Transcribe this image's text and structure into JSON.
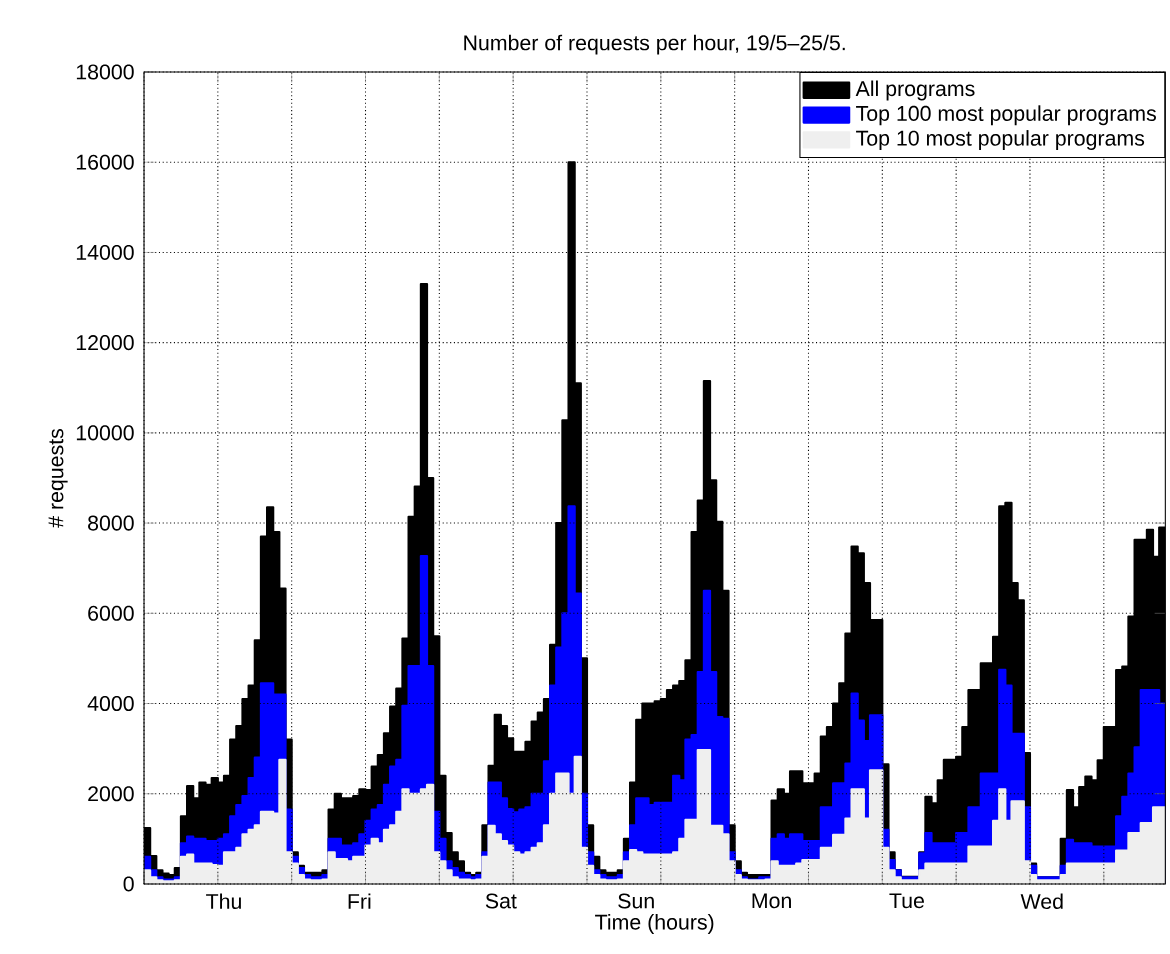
{
  "chart_data": {
    "type": "area",
    "title": "Number of requests per hour, 19/5–25/5.",
    "xlabel": "Time (hours)",
    "ylabel": "# requests",
    "categories": [
      null,
      null,
      null,
      null,
      null,
      null,
      null,
      null,
      null,
      null,
      null,
      null,
      null,
      "Thu",
      null,
      null,
      null,
      null,
      null,
      null,
      null,
      null,
      null,
      null,
      null,
      null,
      null,
      null,
      null,
      null,
      null,
      null,
      null,
      null,
      null,
      "Fri",
      null,
      null,
      null,
      null,
      null,
      null,
      null,
      null,
      null,
      null,
      null,
      null,
      null,
      null,
      null,
      null,
      null,
      null,
      null,
      null,
      null,
      null,
      "Sat",
      null,
      null,
      null,
      null,
      null,
      null,
      null,
      null,
      null,
      null,
      null,
      null,
      null,
      null,
      null,
      null,
      null,
      null,
      null,
      null,
      null,
      "Sun",
      null,
      null,
      null,
      null,
      null,
      null,
      null,
      null,
      null,
      null,
      null,
      null,
      null,
      null,
      null,
      null,
      null,
      null,
      null,
      null,
      null,
      "Mon",
      null,
      null,
      null,
      null,
      null,
      null,
      null,
      null,
      null,
      null,
      null,
      null,
      null,
      null,
      null,
      null,
      null,
      null,
      null,
      null,
      null,
      "Tue",
      null,
      null,
      null,
      null,
      null,
      null,
      null,
      null,
      null,
      null,
      null,
      null,
      null,
      null,
      null,
      null,
      null,
      null,
      null,
      null,
      null,
      "Wed",
      null,
      null,
      null,
      null,
      null,
      null,
      null,
      null,
      null,
      null,
      null,
      null,
      null,
      null,
      null,
      null,
      null,
      null,
      null,
      null
    ],
    "series": [
      {
        "name": "All programs",
        "color": "#000000",
        "values": [
          1240,
          620,
          300,
          230,
          200,
          350,
          1500,
          2170,
          1900,
          2250,
          2200,
          2350,
          2250,
          2400,
          3200,
          3500,
          4100,
          4400,
          5400,
          7700,
          8350,
          7800,
          6550,
          3200,
          700,
          400,
          250,
          250,
          250,
          300,
          1650,
          2000,
          1900,
          1900,
          1950,
          2100,
          2080,
          2600,
          2860,
          3340,
          3930,
          4330,
          5440,
          8140,
          8810,
          13300,
          9000,
          5490,
          2400,
          1130,
          700,
          500,
          250,
          200,
          250,
          1300,
          2620,
          3750,
          3500,
          3230,
          2930,
          2930,
          3150,
          3600,
          3800,
          4100,
          5300,
          8000,
          10280,
          16000,
          11100,
          5000,
          1300,
          600,
          300,
          250,
          250,
          300,
          1000,
          2250,
          3640,
          4000,
          4000,
          4050,
          4100,
          4300,
          4400,
          4500,
          4960,
          7800,
          8500,
          11150,
          8950,
          8030,
          6500,
          1300,
          500,
          250,
          200,
          200,
          200,
          200,
          1850,
          2100,
          2000,
          2500,
          2500,
          2230,
          2230,
          2450,
          3270,
          3480,
          4000,
          4450,
          5550,
          7480,
          7330,
          6670,
          5850,
          5850,
          2650,
          700,
          310,
          160,
          160,
          160,
          700,
          1930,
          1790,
          2300,
          2750,
          2750,
          2820,
          3480,
          4300,
          4300,
          4890,
          4890,
          5480,
          8370,
          8450,
          6670,
          6290,
          2900,
          450,
          150,
          150,
          150,
          150,
          1000,
          2080,
          1700,
          2150,
          2380,
          2300,
          2740,
          3480,
          3480,
          4740,
          4820,
          5930,
          7630,
          7630,
          7850,
          7250,
          7900,
          7900
        ]
      },
      {
        "name": "Top 100 most popular programs",
        "color": "#0000ff",
        "values": [
          600,
          300,
          150,
          100,
          100,
          150,
          900,
          1050,
          1000,
          1000,
          950,
          950,
          1000,
          1100,
          1500,
          1750,
          1950,
          2350,
          2800,
          4450,
          4450,
          4200,
          4200,
          1650,
          600,
          350,
          200,
          150,
          150,
          200,
          1000,
          1000,
          850,
          850,
          900,
          1100,
          1400,
          1650,
          1750,
          2200,
          2600,
          2750,
          3950,
          4830,
          4830,
          7270,
          4830,
          1600,
          1000,
          500,
          350,
          250,
          200,
          150,
          200,
          700,
          2250,
          2250,
          1900,
          1660,
          1590,
          1650,
          1700,
          2000,
          2000,
          2720,
          4400,
          5240,
          6000,
          8370,
          6440,
          2000,
          700,
          300,
          200,
          150,
          150,
          200,
          700,
          1300,
          1900,
          1900,
          1750,
          1800,
          1800,
          1800,
          2400,
          2300,
          3200,
          3300,
          4700,
          6500,
          4700,
          3700,
          3660,
          700,
          300,
          150,
          100,
          100,
          150,
          150,
          1000,
          1100,
          1000,
          1100,
          1100,
          950,
          950,
          950,
          1700,
          1700,
          2230,
          2230,
          2670,
          4220,
          3620,
          3170,
          3740,
          3740,
          1200,
          530,
          300,
          150,
          150,
          150,
          680,
          1130,
          900,
          900,
          900,
          900,
          1130,
          1130,
          1700,
          1700,
          2450,
          2450,
          2450,
          4750,
          4400,
          3330,
          3330,
          1700,
          400,
          150,
          150,
          150,
          150,
          400,
          980,
          900,
          900,
          900,
          830,
          830,
          830,
          830,
          1500,
          1930,
          2450,
          3030,
          4300,
          4300,
          4300,
          4000,
          4000
        ]
      },
      {
        "name": "Top 10 most popular programs",
        "color": "#efefef",
        "values": [
          300,
          150,
          80,
          60,
          60,
          80,
          600,
          650,
          450,
          450,
          450,
          420,
          400,
          700,
          700,
          800,
          1100,
          1200,
          1300,
          1600,
          1600,
          1560,
          2750,
          700,
          450,
          200,
          100,
          80,
          80,
          100,
          700,
          550,
          550,
          500,
          600,
          600,
          850,
          1000,
          900,
          1200,
          1300,
          1600,
          2100,
          2000,
          2000,
          2100,
          2200,
          700,
          500,
          300,
          150,
          100,
          100,
          80,
          100,
          600,
          1290,
          1100,
          950,
          850,
          700,
          650,
          700,
          800,
          900,
          1300,
          2000,
          2450,
          2450,
          2000,
          2820,
          800,
          400,
          200,
          100,
          80,
          80,
          100,
          500,
          750,
          700,
          650,
          650,
          650,
          650,
          650,
          700,
          1000,
          1420,
          1420,
          2970,
          2970,
          1290,
          1290,
          1100,
          500,
          200,
          100,
          80,
          80,
          80,
          100,
          500,
          400,
          400,
          400,
          450,
          530,
          530,
          530,
          800,
          800,
          1090,
          1090,
          1450,
          2100,
          2100,
          1450,
          2520,
          2520,
          800,
          300,
          150,
          80,
          80,
          80,
          300,
          450,
          450,
          450,
          450,
          450,
          450,
          450,
          830,
          830,
          830,
          830,
          1400,
          2100,
          1400,
          1830,
          1830,
          500,
          200,
          80,
          80,
          80,
          80,
          200,
          450,
          450,
          450,
          450,
          450,
          450,
          450,
          450,
          740,
          740,
          1130,
          1130,
          1350,
          1350,
          1700,
          1700,
          1700
        ]
      }
    ],
    "ylim": [
      0,
      18000
    ],
    "yticks": [
      0,
      2000,
      4000,
      6000,
      8000,
      10000,
      12000,
      14000,
      16000,
      18000
    ],
    "grid": true,
    "legend": "top right"
  }
}
